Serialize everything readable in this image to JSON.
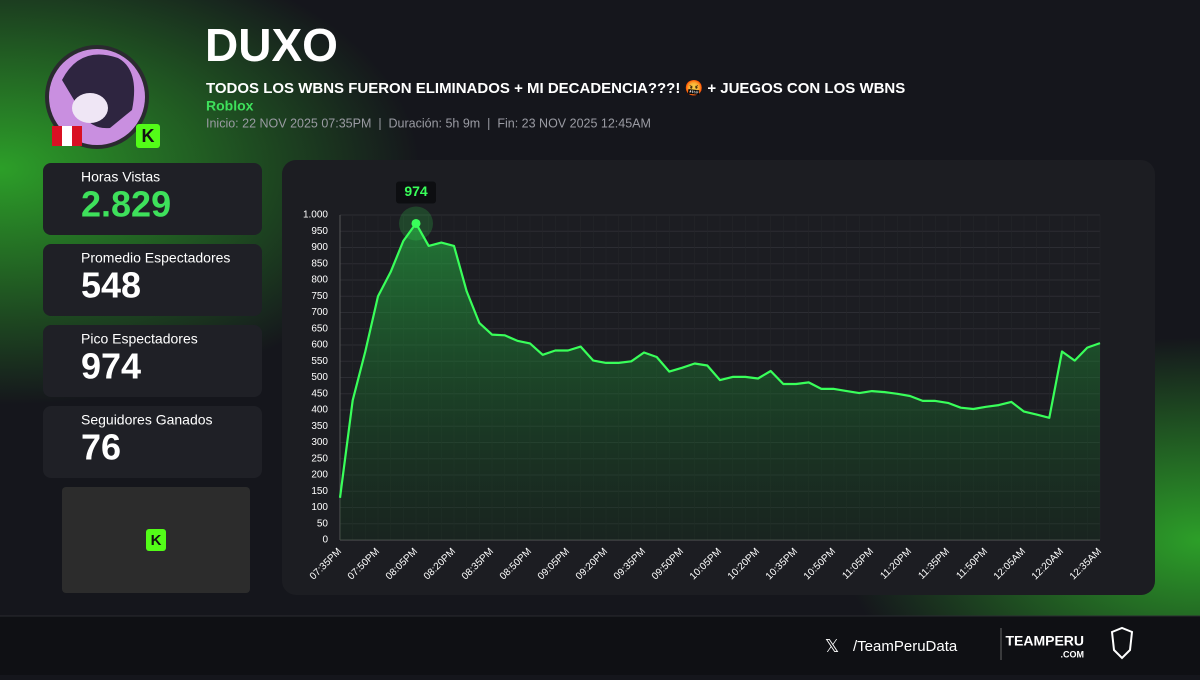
{
  "header": {
    "name": "DUXO",
    "stream_title": "TODOS LOS WBNS FUERON ELIMINADOS + MI DECADENCIA???! 🤬 + JUEGOS CON LOS WBNS",
    "game": "Roblox",
    "meta": "Inicio: 22 NOV 2025 07:35PM  |  Duración: 5h 9m  |  Fin: 23 NOV 2025 12:45AM"
  },
  "stats": [
    {
      "label": "Horas Vistas",
      "value": "2.829"
    },
    {
      "label": "Promedio Espectadores",
      "value": "548"
    },
    {
      "label": "Pico Espectadores",
      "value": "974"
    },
    {
      "label": "Seguidores Ganados",
      "value": "76"
    }
  ],
  "footer": {
    "handle": "/TeamPeruData",
    "brand": "TEAMPERU",
    "brand_sub": ".COM"
  },
  "chart_data": {
    "type": "line",
    "color": "#39ff5a",
    "grid": true,
    "categories": [
      "07:35PM",
      null,
      null,
      "07:50PM",
      null,
      null,
      "08:05PM",
      null,
      null,
      "08:20PM",
      null,
      null,
      "08:35PM",
      null,
      null,
      "08:50PM",
      null,
      null,
      "09:05PM",
      null,
      null,
      "09:20PM",
      null,
      null,
      "09:35PM",
      null,
      null,
      "09:50PM",
      null,
      null,
      "10:05PM",
      null,
      null,
      "10:20PM",
      null,
      null,
      "10:35PM",
      null,
      null,
      "10:50PM",
      null,
      null,
      "11:05PM",
      null,
      null,
      "11:20PM",
      null,
      null,
      "11:35PM",
      null,
      null,
      "11:50PM",
      null,
      null,
      "12:05AM",
      null,
      null,
      "12:20AM",
      null,
      null,
      "12:35AM"
    ],
    "values": [
      130,
      430,
      580,
      750,
      825,
      920,
      974,
      905,
      915,
      905,
      765,
      668,
      632,
      630,
      613,
      605,
      570,
      583,
      583,
      595,
      552,
      545,
      545,
      550,
      577,
      563,
      518,
      530,
      543,
      537,
      492,
      502,
      502,
      497,
      520,
      480,
      480,
      485,
      465,
      465,
      458,
      452,
      458,
      455,
      450,
      443,
      428,
      428,
      422,
      407,
      403,
      410,
      415,
      425,
      395,
      386,
      376,
      580,
      552,
      592,
      606
    ],
    "value_labels": {
      "6": "974"
    },
    "ylim": [
      0,
      1000
    ],
    "yticks": [
      0,
      50,
      100,
      150,
      200,
      250,
      300,
      350,
      400,
      450,
      500,
      550,
      600,
      650,
      700,
      750,
      800,
      850,
      900,
      950,
      {
        "value": 1000,
        "label": "1.000"
      }
    ]
  }
}
